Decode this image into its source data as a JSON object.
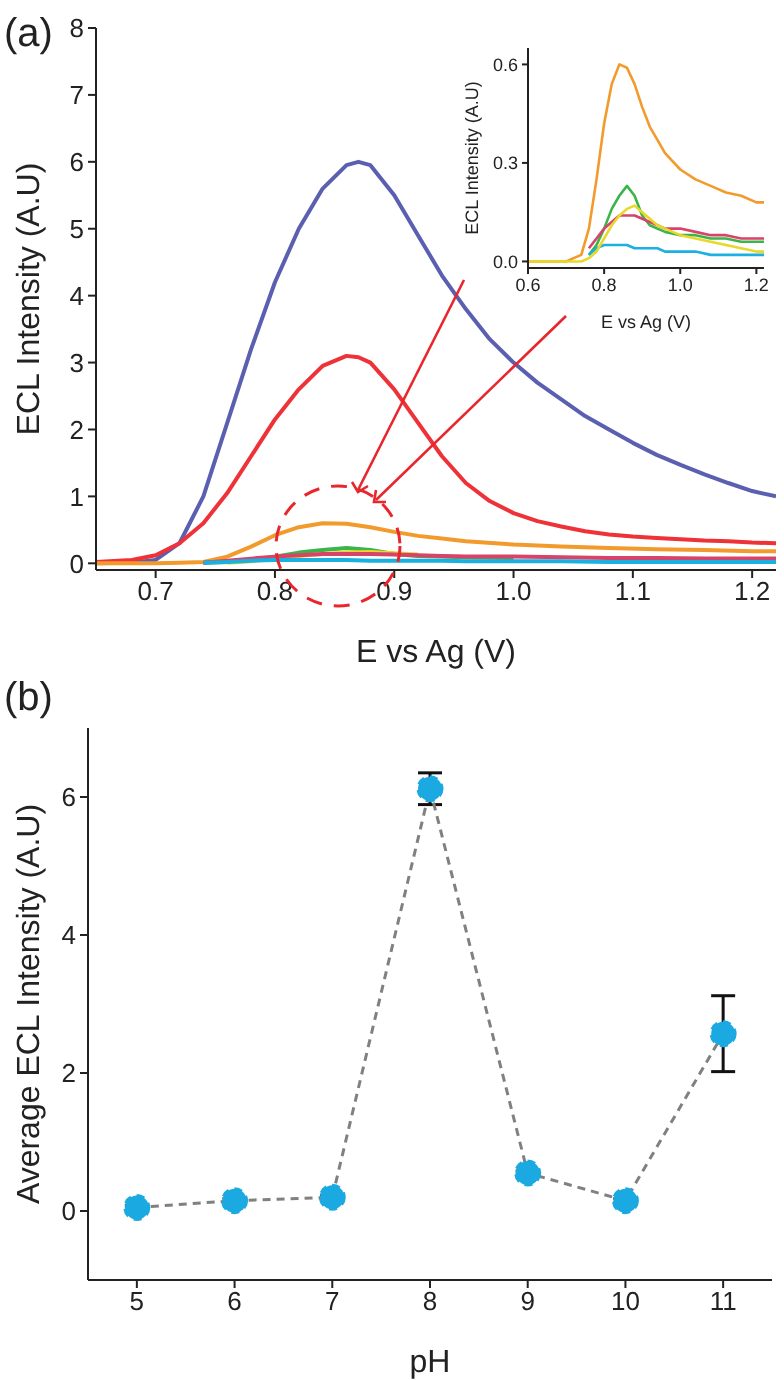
{
  "chart_data": [
    {
      "type": "line",
      "title": "(a)",
      "xlabel": "E vs Ag (V)",
      "ylabel": "ECL Intensity (A.U)",
      "xlim": [
        0.65,
        1.22
      ],
      "ylim": [
        -0.1,
        8
      ],
      "xticks": [
        0.7,
        0.8,
        0.9,
        {
          "value": 1,
          "label": "1.0"
        },
        1.1,
        1.2
      ],
      "yticks": [
        0,
        1,
        2,
        3,
        4,
        5,
        6,
        7,
        8
      ],
      "marker": "none",
      "series": [
        {
          "color": "#5b5fb0",
          "x": [
            0.65,
            0.68,
            0.7,
            0.72,
            0.74,
            0.76,
            0.78,
            0.8,
            0.82,
            0.84,
            0.86,
            0.87,
            0.88,
            0.9,
            0.92,
            0.94,
            0.96,
            0.98,
            1.0,
            1.02,
            1.04,
            1.06,
            1.08,
            1.1,
            1.12,
            1.14,
            1.16,
            1.18,
            1.2,
            1.22
          ],
          "values": [
            0,
            0.01,
            0.05,
            0.3,
            1.0,
            2.1,
            3.2,
            4.2,
            5.0,
            5.6,
            5.95,
            6.0,
            5.95,
            5.5,
            4.9,
            4.3,
            3.8,
            3.35,
            3.0,
            2.7,
            2.45,
            2.2,
            2.0,
            1.8,
            1.62,
            1.47,
            1.33,
            1.2,
            1.08,
            1.0
          ]
        },
        {
          "color": "#ee3238",
          "x": [
            0.65,
            0.68,
            0.7,
            0.72,
            0.74,
            0.76,
            0.78,
            0.8,
            0.82,
            0.84,
            0.86,
            0.87,
            0.88,
            0.9,
            0.92,
            0.94,
            0.96,
            0.98,
            1.0,
            1.02,
            1.04,
            1.06,
            1.08,
            1.1,
            1.12,
            1.14,
            1.16,
            1.18,
            1.2,
            1.22
          ],
          "values": [
            0.02,
            0.05,
            0.12,
            0.3,
            0.6,
            1.05,
            1.6,
            2.15,
            2.6,
            2.95,
            3.1,
            3.08,
            3.0,
            2.6,
            2.1,
            1.6,
            1.2,
            0.93,
            0.75,
            0.63,
            0.55,
            0.48,
            0.43,
            0.4,
            0.38,
            0.36,
            0.34,
            0.33,
            0.31,
            0.3
          ]
        },
        {
          "color": "#f39a2c",
          "x": [
            0.65,
            0.7,
            0.72,
            0.74,
            0.76,
            0.78,
            0.8,
            0.82,
            0.84,
            0.86,
            0.88,
            0.9,
            0.92,
            0.94,
            0.96,
            1.0,
            1.04,
            1.08,
            1.12,
            1.16,
            1.2,
            1.22
          ],
          "values": [
            0,
            0,
            0.01,
            0.02,
            0.1,
            0.25,
            0.42,
            0.54,
            0.6,
            0.59,
            0.54,
            0.47,
            0.41,
            0.37,
            0.33,
            0.28,
            0.25,
            0.23,
            0.21,
            0.2,
            0.18,
            0.18
          ]
        },
        {
          "color": "#3cb44a",
          "x": [
            0.74,
            0.76,
            0.78,
            0.8,
            0.82,
            0.84,
            0.86,
            0.88,
            0.9,
            0.92,
            0.94,
            0.96,
            1.0
          ],
          "values": [
            0.01,
            0.02,
            0.05,
            0.1,
            0.16,
            0.2,
            0.23,
            0.2,
            0.14,
            0.11,
            0.1,
            0.09,
            0.08
          ]
        },
        {
          "color": "#e8d82a",
          "x": [
            0.76,
            0.78,
            0.82,
            0.84,
            0.86,
            0.88,
            0.9,
            0.92
          ],
          "values": [
            0.01,
            0.03,
            0.11,
            0.14,
            0.16,
            0.17,
            0.15,
            0.13
          ]
        },
        {
          "color": "#d8436a",
          "x": [
            0.74,
            0.76,
            0.78,
            0.8,
            0.82,
            0.84,
            0.86,
            0.88,
            0.9,
            0.92,
            0.94,
            0.96,
            1.0,
            1.04,
            1.08,
            1.12,
            1.16,
            1.2,
            1.22
          ],
          "values": [
            0.01,
            0.04,
            0.07,
            0.1,
            0.12,
            0.14,
            0.14,
            0.14,
            0.13,
            0.12,
            0.11,
            0.1,
            0.1,
            0.09,
            0.08,
            0.08,
            0.07,
            0.07,
            0.07
          ]
        },
        {
          "color": "#1ab0e0",
          "x": [
            0.74,
            0.76,
            0.78,
            0.8,
            0.82,
            0.84,
            0.86,
            0.88,
            0.9,
            0.92,
            0.94,
            0.96,
            1.0,
            1.04,
            1.08,
            1.12,
            1.16,
            1.2,
            1.22
          ],
          "values": [
            0.01,
            0.02,
            0.04,
            0.05,
            0.05,
            0.05,
            0.05,
            0.04,
            0.04,
            0.04,
            0.04,
            0.03,
            0.03,
            0.03,
            0.02,
            0.02,
            0.02,
            0.02,
            0.02
          ]
        }
      ]
    },
    {
      "type": "line",
      "xlabel": "E vs Ag (V)",
      "ylabel": "ECL Intensity (A.U)",
      "xlim": [
        0.6,
        1.22
      ],
      "ylim": [
        -0.02,
        0.65
      ],
      "xticks": [
        0.6,
        0.8,
        {
          "value": 1,
          "label": "1.0"
        },
        1.2
      ],
      "yticks": [
        {
          "value": 0,
          "label": "0.0"
        },
        0.3,
        0.6
      ],
      "marker": "none",
      "series": [
        {
          "color": "#f39a2c",
          "x": [
            0.6,
            0.65,
            0.7,
            0.72,
            0.74,
            0.76,
            0.78,
            0.8,
            0.82,
            0.84,
            0.86,
            0.88,
            0.9,
            0.92,
            0.94,
            0.96,
            1.0,
            1.04,
            1.08,
            1.12,
            1.16,
            1.2,
            1.22
          ],
          "values": [
            0,
            0,
            0,
            0.01,
            0.02,
            0.1,
            0.25,
            0.42,
            0.54,
            0.6,
            0.59,
            0.54,
            0.47,
            0.41,
            0.37,
            0.33,
            0.28,
            0.25,
            0.23,
            0.21,
            0.2,
            0.18,
            0.18
          ]
        },
        {
          "color": "#3cb44a",
          "x": [
            0.76,
            0.78,
            0.8,
            0.82,
            0.84,
            0.86,
            0.88,
            0.9,
            0.92,
            0.94,
            0.96,
            1.0,
            1.04,
            1.08,
            1.12,
            1.16,
            1.2,
            1.22
          ],
          "values": [
            0.02,
            0.05,
            0.1,
            0.16,
            0.2,
            0.23,
            0.2,
            0.14,
            0.11,
            0.1,
            0.09,
            0.08,
            0.08,
            0.07,
            0.07,
            0.06,
            0.06,
            0.06
          ]
        },
        {
          "color": "#d8436a",
          "x": [
            0.76,
            0.78,
            0.8,
            0.82,
            0.84,
            0.86,
            0.88,
            0.9,
            0.92,
            0.94,
            0.96,
            1.0,
            1.04,
            1.08,
            1.12,
            1.16,
            1.2,
            1.22
          ],
          "values": [
            0.04,
            0.07,
            0.1,
            0.12,
            0.14,
            0.14,
            0.14,
            0.13,
            0.12,
            0.11,
            0.1,
            0.1,
            0.09,
            0.08,
            0.08,
            0.07,
            0.07,
            0.07
          ]
        },
        {
          "color": "#1ab0e0",
          "x": [
            0.76,
            0.78,
            0.8,
            0.82,
            0.84,
            0.86,
            0.88,
            0.9,
            0.92,
            0.94,
            0.96,
            1.0,
            1.04,
            1.08,
            1.12,
            1.16,
            1.2,
            1.22
          ],
          "values": [
            0.02,
            0.04,
            0.05,
            0.05,
            0.05,
            0.05,
            0.04,
            0.04,
            0.04,
            0.04,
            0.03,
            0.03,
            0.03,
            0.02,
            0.02,
            0.02,
            0.02,
            0.02
          ]
        },
        {
          "color": "#e8d82a",
          "x": [
            0.6,
            0.65,
            0.7,
            0.72,
            0.74,
            0.76,
            0.78,
            0.8,
            0.82,
            0.84,
            0.86,
            0.88,
            0.9,
            0.92,
            0.94,
            0.96,
            1.0,
            1.04,
            1.08,
            1.12,
            1.16,
            1.2,
            1.22
          ],
          "values": [
            0,
            0,
            0,
            0,
            0,
            0.01,
            0.03,
            0.07,
            0.11,
            0.14,
            0.16,
            0.17,
            0.15,
            0.13,
            0.11,
            0.1,
            0.08,
            0.07,
            0.06,
            0.05,
            0.04,
            0.03,
            0.03
          ]
        }
      ]
    },
    {
      "type": "line",
      "title": "(b)",
      "xlabel": "pH",
      "ylabel": "Average ECL Intensity (A.U)",
      "xlim": [
        4.5,
        11.5
      ],
      "ylim": [
        -1,
        7
      ],
      "xticks": [
        5,
        6,
        7,
        8,
        9,
        10,
        11
      ],
      "yticks": [
        0,
        2,
        4,
        6
      ],
      "marker": "circle",
      "line_style": "dashed",
      "series": [
        {
          "color": "#1ba9e1",
          "x": [
            5,
            6,
            7,
            8,
            9,
            10,
            11
          ],
          "values": [
            0.05,
            0.15,
            0.2,
            6.12,
            0.55,
            0.15,
            2.57
          ],
          "errors": [
            0.03,
            0.03,
            0.03,
            0.23,
            0.03,
            0.03,
            0.55
          ]
        }
      ]
    }
  ]
}
